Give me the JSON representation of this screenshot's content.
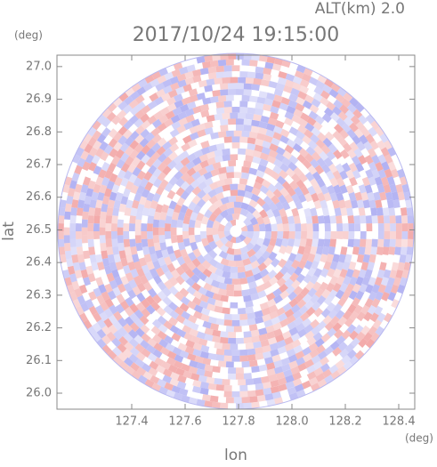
{
  "chart_data": {
    "type": "radar",
    "title": "2017/10/24 19:15:00",
    "annotation": "ALT(km) 2.0",
    "x_label": "lon",
    "y_label": "lat",
    "x_unit": "(deg)",
    "y_unit": "(deg)",
    "xlim": [
      127.12,
      128.46
    ],
    "xticks": [
      127.4,
      127.6,
      127.8,
      {
        "value": 128.0,
        "label": "128.0"
      },
      128.2,
      128.4
    ],
    "ylim": [
      25.951,
      27.035
    ],
    "yticks": [
      {
        "value": 26.0,
        "label": "26.0"
      },
      26.1,
      26.2,
      26.3,
      26.4,
      26.5,
      26.6,
      26.7,
      26.8,
      26.9,
      {
        "value": 27.0,
        "label": "27.0"
      }
    ],
    "colors": [
      "#f2a6a6",
      "#aeaef2"
    ]
  }
}
